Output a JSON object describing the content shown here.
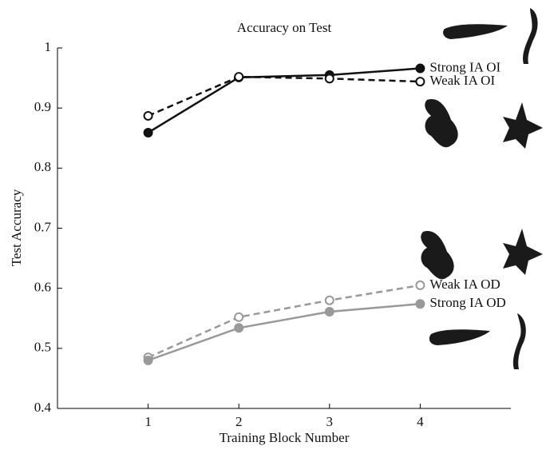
{
  "chart_data": {
    "type": "line",
    "title": "Accuracy on Test",
    "x_label": "Training Block Number",
    "y_label": "Test Accuracy",
    "x": [
      1,
      2,
      3,
      4
    ],
    "xlim": [
      0,
      5
    ],
    "xticks": [
      1,
      2,
      3,
      4
    ],
    "ylim": [
      0.4,
      1
    ],
    "yticks": [
      0.4,
      0.5,
      0.6,
      0.7,
      0.8,
      0.9,
      1
    ],
    "series": [
      {
        "name": "Strong IA OI",
        "color": "#111111",
        "linestyle": "solid",
        "marker": "filled",
        "values": [
          0.859,
          0.951,
          0.955,
          0.966
        ]
      },
      {
        "name": "Weak IA OI",
        "color": "#111111",
        "linestyle": "dashed",
        "marker": "open",
        "values": [
          0.887,
          0.952,
          0.949,
          0.944
        ]
      },
      {
        "name": "Weak IA OD",
        "color": "#999999",
        "linestyle": "dashed",
        "marker": "open",
        "values": [
          0.485,
          0.552,
          0.58,
          0.605
        ]
      },
      {
        "name": "Strong IA OD",
        "color": "#999999",
        "linestyle": "solid",
        "marker": "filled",
        "values": [
          0.48,
          0.534,
          0.561,
          0.574
        ]
      }
    ]
  }
}
